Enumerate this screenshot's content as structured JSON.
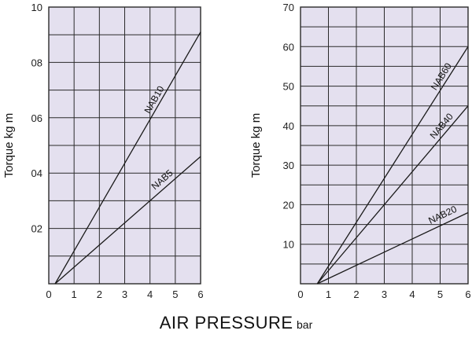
{
  "chart_data": [
    {
      "type": "line",
      "ylabel": "Torque  kg m",
      "xlim": [
        0,
        6
      ],
      "ylim": [
        0,
        10
      ],
      "x_ticks": [
        "0",
        "1",
        "2",
        "3",
        "4",
        "5",
        "6"
      ],
      "y_ticks": [
        {
          "value": 2,
          "label": "02"
        },
        {
          "value": 4,
          "label": "04"
        },
        {
          "value": 6,
          "label": "06"
        },
        {
          "value": 8,
          "label": "08"
        },
        {
          "value": 10,
          "label": "10"
        }
      ],
      "grid": true,
      "series": [
        {
          "name": "NAB10",
          "x": [
            0.25,
            6
          ],
          "y": [
            0,
            9.1
          ]
        },
        {
          "name": "NAB5",
          "x": [
            0.25,
            6
          ],
          "y": [
            0,
            4.6
          ]
        }
      ]
    },
    {
      "type": "line",
      "ylabel": "Torque  kg m",
      "xlim": [
        0,
        6
      ],
      "ylim": [
        0,
        70
      ],
      "x_ticks": [
        "0",
        "1",
        "2",
        "3",
        "4",
        "5",
        "6"
      ],
      "y_ticks": [
        {
          "value": 10,
          "label": "10"
        },
        {
          "value": 20,
          "label": "20"
        },
        {
          "value": 30,
          "label": "30"
        },
        {
          "value": 40,
          "label": "40"
        },
        {
          "value": 50,
          "label": "50"
        },
        {
          "value": 60,
          "label": "60"
        },
        {
          "value": 70,
          "label": "70"
        }
      ],
      "grid": true,
      "series": [
        {
          "name": "NAB60",
          "x": [
            0.6,
            6
          ],
          "y": [
            0,
            60
          ]
        },
        {
          "name": "NAB40",
          "x": [
            0.6,
            6
          ],
          "y": [
            0,
            45
          ]
        },
        {
          "name": "NAB20",
          "x": [
            0.6,
            6
          ],
          "y": [
            0,
            18
          ]
        }
      ]
    }
  ],
  "xlabel": {
    "main": "AIR PRESSURE",
    "unit": "bar"
  },
  "colors": {
    "plot_bg": "#e4e0ef",
    "grid": "#2a2a2a",
    "line": "#1a1a1a"
  }
}
